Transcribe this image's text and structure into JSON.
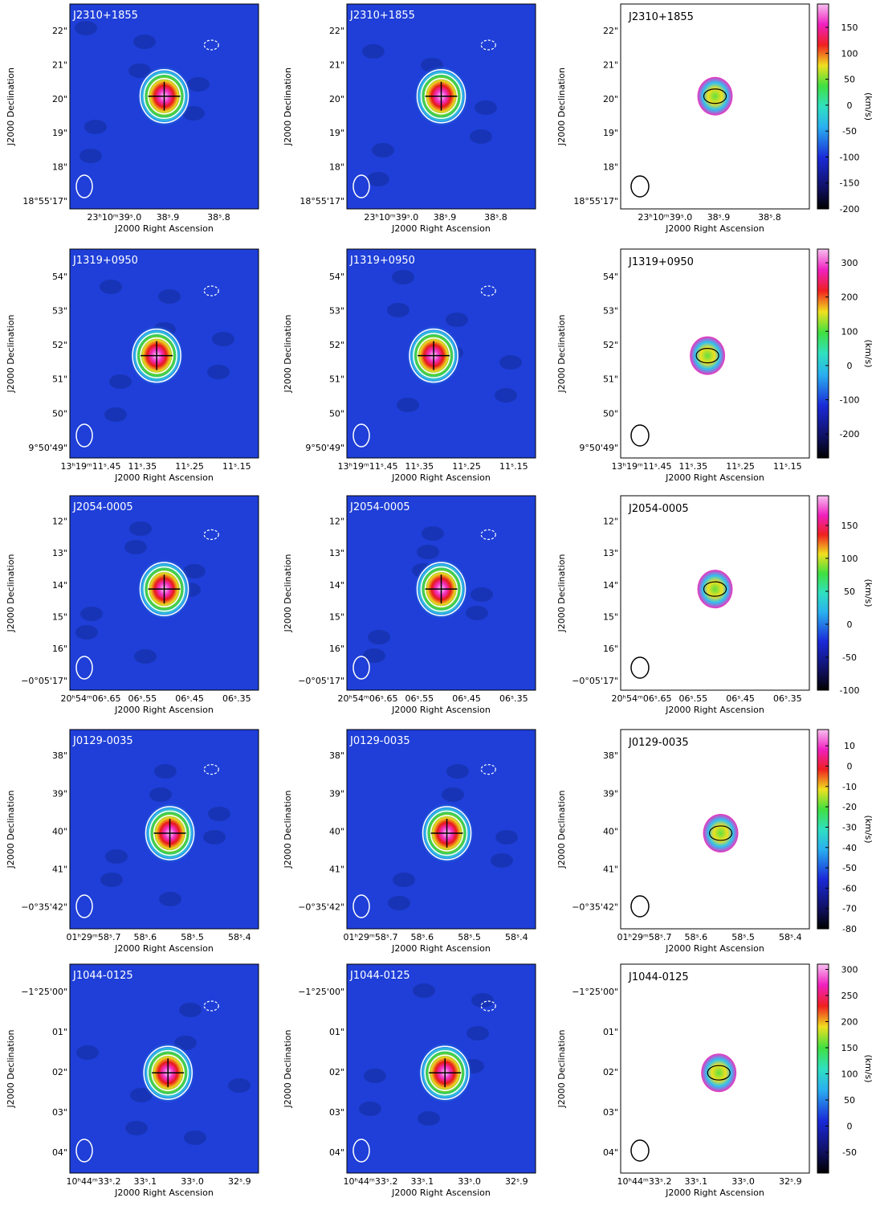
{
  "x_label": "J2000 Right Ascension",
  "y_label": "J2000 Declination",
  "rows": [
    {
      "source": "J2310+1855",
      "dec_ticks": [
        "22\"",
        "21\"",
        "20\"",
        "19\"",
        "18\"",
        "18°55'17\""
      ],
      "ra_ticks": [
        "23ʰ10ᵐ39ˢ.0",
        "38ˢ.9",
        "38ˢ.8"
      ],
      "colorbar": {
        "label": "(km/s)",
        "lim": [
          -200,
          195
        ],
        "ticks": [
          150,
          100,
          50,
          0,
          -50,
          -100,
          -150,
          -200
        ]
      }
    },
    {
      "source": "J1319+0950",
      "dec_ticks": [
        "54\"",
        "53\"",
        "52\"",
        "51\"",
        "50\"",
        "9°50'49\""
      ],
      "ra_ticks": [
        "13ʰ19ᵐ11ˢ.45",
        "11ˢ.35",
        "11ˢ.25",
        "11ˢ.15"
      ],
      "colorbar": {
        "label": "(km/s)",
        "lim": [
          -270,
          340
        ],
        "ticks": [
          300,
          200,
          100,
          0,
          -100,
          -200
        ]
      }
    },
    {
      "source": "J2054-0005",
      "dec_ticks": [
        "12\"",
        "13\"",
        "14\"",
        "15\"",
        "16\"",
        "−0°05'17\""
      ],
      "ra_ticks": [
        "20ʰ54ᵐ06ˢ.65",
        "06ˢ.55",
        "06ˢ.45",
        "06ˢ.35"
      ],
      "colorbar": {
        "label": "(km/s)",
        "lim": [
          -100,
          195
        ],
        "ticks": [
          150,
          100,
          50,
          0,
          -50,
          -100
        ]
      }
    },
    {
      "source": "J0129-0035",
      "dec_ticks": [
        "38\"",
        "39\"",
        "40\"",
        "41\"",
        "−0°35'42\""
      ],
      "ra_ticks": [
        "01ʰ29ᵐ58ˢ.7",
        "58ˢ.6",
        "58ˢ.5",
        "58ˢ.4"
      ],
      "colorbar": {
        "label": "(km/s)",
        "lim": [
          -80,
          18
        ],
        "ticks": [
          10,
          0,
          -10,
          -20,
          -30,
          -40,
          -50,
          -60,
          -70,
          -80
        ]
      }
    },
    {
      "source": "J1044-0125",
      "dec_ticks": [
        "−1°25'00\"",
        "01\"",
        "02\"",
        "03\"",
        "04\""
      ],
      "ra_ticks": [
        "10ʰ44ᵐ33ˢ.2",
        "33ˢ.1",
        "33ˢ.0",
        "32ˢ.9"
      ],
      "colorbar": {
        "label": "(km/s)",
        "lim": [
          -90,
          310
        ],
        "ticks": [
          300,
          250,
          200,
          150,
          100,
          50,
          0,
          -50
        ]
      }
    }
  ]
}
